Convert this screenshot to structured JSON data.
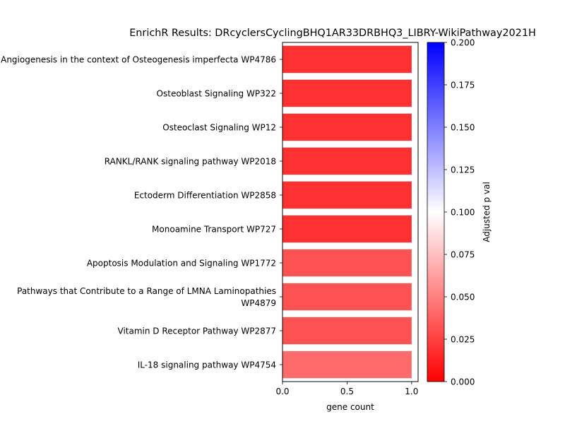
{
  "chart_data": {
    "type": "bar",
    "orientation": "horizontal",
    "title": "EnrichR Results: DRcyclersCyclingBHQ1AR33DRBHQ3_LIBRY-WikiPathway2021H",
    "xlabel": "gene count",
    "ylabel": "",
    "xlim": [
      0,
      1.05
    ],
    "xticks": [
      "0.0",
      "0.5",
      "1.0"
    ],
    "categories": [
      [
        "Angiogenesis in the context of Osteogenesis imperfecta WP4786"
      ],
      [
        "Osteoblast Signaling WP322"
      ],
      [
        "Osteoclast Signaling WP12"
      ],
      [
        "RANKL/RANK signaling pathway WP2018"
      ],
      [
        "Ectoderm Differentiation WP2858"
      ],
      [
        "Monoamine Transport WP727"
      ],
      [
        "Apoptosis Modulation and Signaling WP1772"
      ],
      [
        "Pathways that Contribute to a Range of LMNA Laminopathies",
        "WP4879"
      ],
      [
        "Vitamin D Receptor Pathway WP2877"
      ],
      [
        "IL-18 signaling pathway WP4754"
      ]
    ],
    "values": [
      1,
      1,
      1,
      1,
      1,
      1,
      1,
      1,
      1,
      1
    ],
    "adjusted_p": [
      0.019,
      0.019,
      0.019,
      0.019,
      0.019,
      0.019,
      0.032,
      0.032,
      0.032,
      0.042
    ],
    "colorbar": {
      "label": "Adjusted p val",
      "range": [
        0,
        0.2
      ],
      "ticks": [
        "0.000",
        "0.025",
        "0.050",
        "0.075",
        "0.100",
        "0.125",
        "0.150",
        "0.175",
        "0.200"
      ],
      "colors": [
        "#ff0000",
        "#ffffff",
        "#0000ff"
      ]
    },
    "grid": false,
    "legend": "none"
  }
}
